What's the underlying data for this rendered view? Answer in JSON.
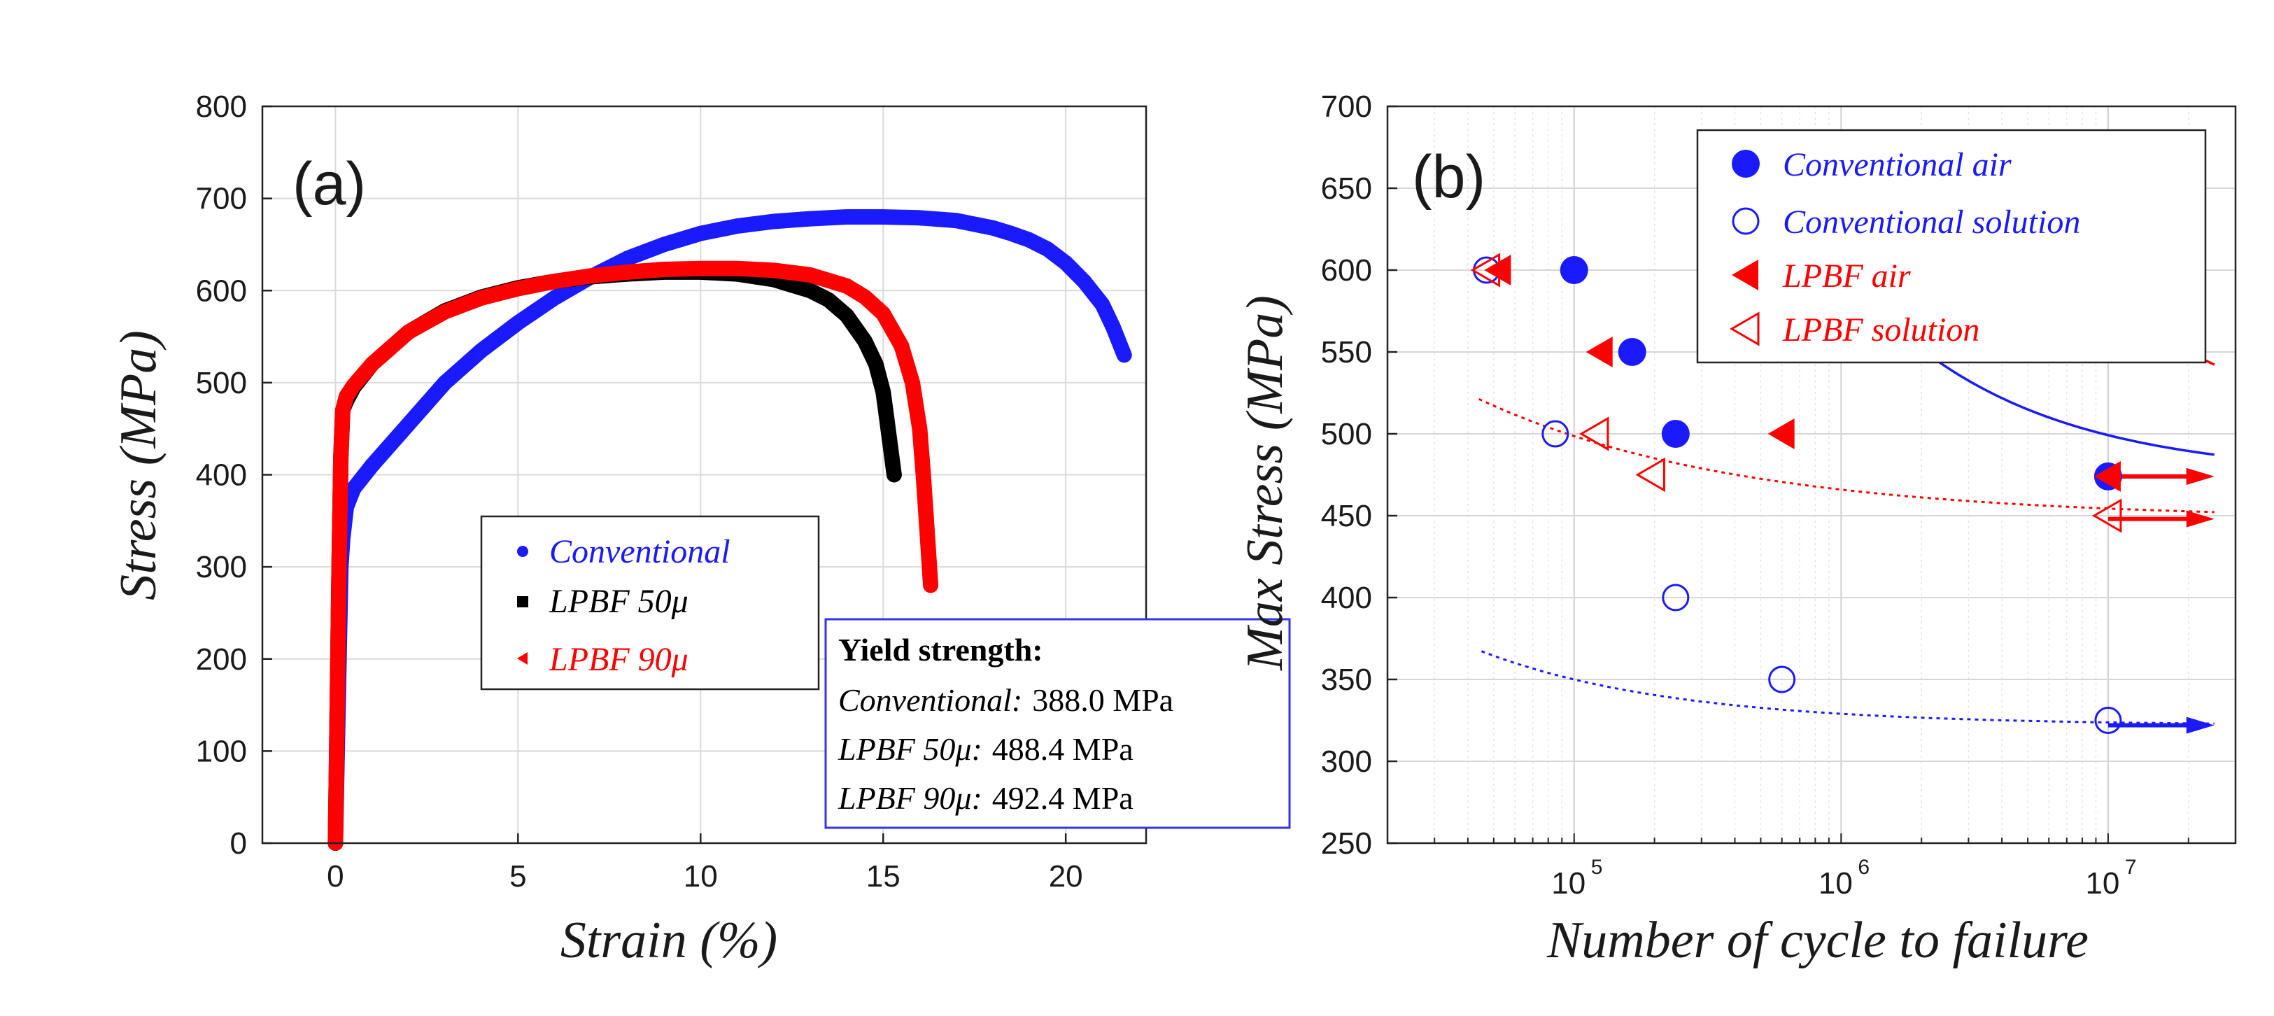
{
  "chart_data": [
    {
      "type": "line",
      "panel_label": "(a)",
      "xlabel": "Strain (%)",
      "ylabel": "Stress (MPa)",
      "xlim": [
        -2,
        22.2
      ],
      "ylim": [
        0,
        800
      ],
      "xticks": [
        0,
        5,
        10,
        15,
        20
      ],
      "yticks": [
        0,
        100,
        200,
        300,
        400,
        500,
        600,
        700,
        800
      ],
      "grid": true,
      "legend_position": "center",
      "series": [
        {
          "name": "Conventional",
          "color": "#1a1aff",
          "marker": "dot",
          "x": [
            0,
            0.05,
            0.1,
            0.15,
            0.2,
            0.3,
            0.5,
            1,
            2,
            3,
            4,
            5,
            6,
            7,
            8,
            9,
            10,
            11,
            12,
            13,
            14,
            15,
            16,
            17,
            17.5,
            18,
            18.5,
            19,
            19.5,
            20,
            20.5,
            21,
            21.3,
            21.6
          ],
          "y": [
            0,
            100,
            200,
            300,
            330,
            365,
            385,
            410,
            455,
            500,
            535,
            565,
            592,
            615,
            635,
            650,
            662,
            670,
            675,
            678,
            680,
            680,
            679,
            676,
            672,
            668,
            662,
            655,
            645,
            630,
            610,
            585,
            560,
            530
          ]
        },
        {
          "name": "LPBF 50μ",
          "color": "#000000",
          "marker": "square",
          "x": [
            0,
            0.05,
            0.1,
            0.15,
            0.2,
            0.3,
            0.5,
            1,
            2,
            3,
            4,
            5,
            6,
            7,
            8,
            9,
            10,
            11,
            12,
            13,
            13.5,
            14,
            14.5,
            14.8,
            15,
            15.1,
            15.2,
            15.3
          ],
          "y": [
            0,
            150,
            300,
            420,
            470,
            480,
            495,
            520,
            555,
            578,
            593,
            603,
            610,
            615,
            618,
            620,
            620,
            618,
            612,
            600,
            590,
            573,
            545,
            520,
            490,
            460,
            430,
            400
          ]
        },
        {
          "name": "LPBF 90μ",
          "color": "#ff0000",
          "marker": "triangle-left",
          "x": [
            0,
            0.05,
            0.1,
            0.15,
            0.2,
            0.3,
            0.5,
            1,
            2,
            3,
            4,
            5,
            6,
            7,
            8,
            9,
            10,
            11,
            12,
            13,
            14,
            14.5,
            15,
            15.5,
            15.8,
            16,
            16.1,
            16.2,
            16.3
          ],
          "y": [
            0,
            150,
            300,
            420,
            470,
            485,
            497,
            520,
            555,
            577,
            592,
            602,
            610,
            616,
            620,
            623,
            624,
            624,
            622,
            617,
            605,
            593,
            575,
            540,
            500,
            450,
            400,
            340,
            280
          ]
        }
      ],
      "annotation": {
        "title": "Yield strength:",
        "rows": [
          {
            "name": "Conventional:",
            "value": "388.0 MPa"
          },
          {
            "name": "LPBF 50μ:",
            "value": "488.4 MPa"
          },
          {
            "name": "LPBF 90μ:",
            "value": "492.4 MPa"
          }
        ]
      }
    },
    {
      "type": "scatter",
      "panel_label": "(b)",
      "xlabel": "Number of cycle to failure",
      "ylabel": "Max Stress (MPa)",
      "xscale": "log",
      "xlim": [
        20000,
        30000000
      ],
      "ylim": [
        250,
        700
      ],
      "xticks": [
        {
          "base": "10",
          "exp": "5",
          "value": 100000
        },
        {
          "base": "10",
          "exp": "6",
          "value": 1000000
        },
        {
          "base": "10",
          "exp": "7",
          "value": 10000000
        }
      ],
      "yticks": [
        250,
        300,
        350,
        400,
        450,
        500,
        550,
        600,
        650,
        700
      ],
      "grid": true,
      "legend_position": "top-right",
      "series": [
        {
          "name": "Conventional air",
          "color": "#1a1aff",
          "marker": "filled-circle",
          "points": [
            [
              100000,
              600
            ],
            [
              165000,
              550
            ],
            [
              240000,
              500
            ],
            [
              10000000,
              474
            ]
          ],
          "fit": {
            "a": 474,
            "b": 2000000,
            "c": 0.7
          },
          "fit_range": [
            78000,
            25000000
          ],
          "runout_arrow": {
            "from": 10000000,
            "to": 25000000,
            "y": 474
          }
        },
        {
          "name": "Conventional solution",
          "color": "#1a1aff",
          "marker": "open-circle",
          "points": [
            [
              47000,
              600
            ],
            [
              85000,
              500
            ],
            [
              240000,
              400
            ],
            [
              600000,
              350
            ],
            [
              10000000,
              325
            ]
          ],
          "fit": {
            "a": 322,
            "b": 28000,
            "c": 0.6
          },
          "fit_range": [
            45000,
            25000000
          ],
          "runout_arrow": {
            "from": 10000000,
            "to": 25000000,
            "y": 322
          }
        },
        {
          "name": "LPBF air",
          "color": "#ff0000",
          "marker": "filled-triangle-left",
          "points": [
            [
              52000,
              600
            ],
            [
              125000,
              550
            ],
            [
              600000,
              500
            ],
            [
              10000000,
              474
            ]
          ],
          "fit": {
            "a": 472,
            "b": 150000,
            "c": 0.45
          },
          "fit_range": [
            44000,
            25000000
          ],
          "runout_arrow": {
            "from": 10000000,
            "to": 25000000,
            "y": 474
          }
        },
        {
          "name": "LPBF solution",
          "color": "#ff0000",
          "marker": "open-triangle-left",
          "points": [
            [
              47000,
              600
            ],
            [
              120000,
              500
            ],
            [
              195000,
              475
            ],
            [
              10000000,
              450
            ]
          ],
          "fit": {
            "a": 448,
            "b": 9000,
            "c": 0.45
          },
          "fit_range": [
            44000,
            25000000
          ],
          "runout_arrow": {
            "from": 10000000,
            "to": 25000000,
            "y": 448
          }
        }
      ]
    }
  ]
}
